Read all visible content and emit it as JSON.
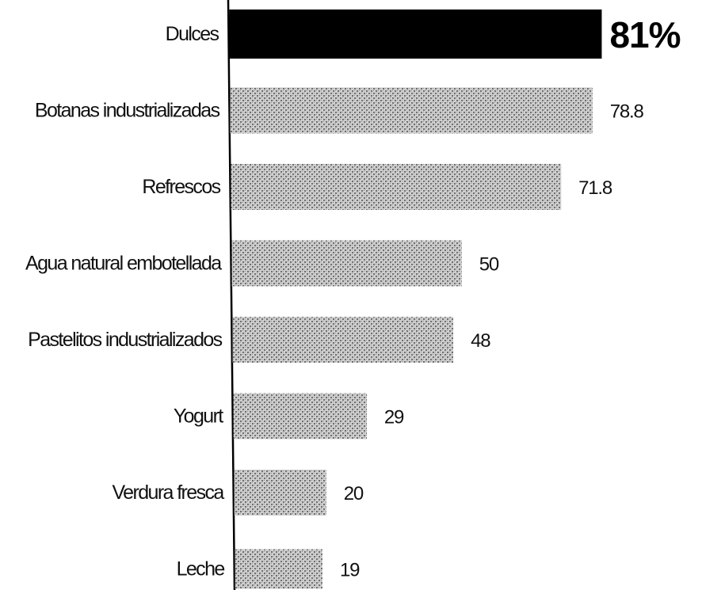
{
  "chart_data": {
    "type": "bar",
    "orientation": "horizontal",
    "categories": [
      "Dulces",
      "Botanas industrializadas",
      "Refrescos",
      "Agua natural embotellada",
      "Pastelitos industrializados",
      "Yogurt",
      "Verdura fresca",
      "Leche"
    ],
    "values": [
      81,
      78.8,
      71.8,
      50,
      48,
      29,
      20,
      19
    ],
    "value_labels": [
      "81%",
      "78.8",
      "71.8",
      "50",
      "48",
      "29",
      "20",
      "19"
    ],
    "highlight_index": 0,
    "xlim": [
      0,
      81
    ],
    "grid": false,
    "legend": "none",
    "colors": {
      "highlight": "#000000",
      "bar_fill": "#9a9a9a",
      "bar_dark": "#555555",
      "axis": "#000000",
      "text": "#111111"
    }
  }
}
